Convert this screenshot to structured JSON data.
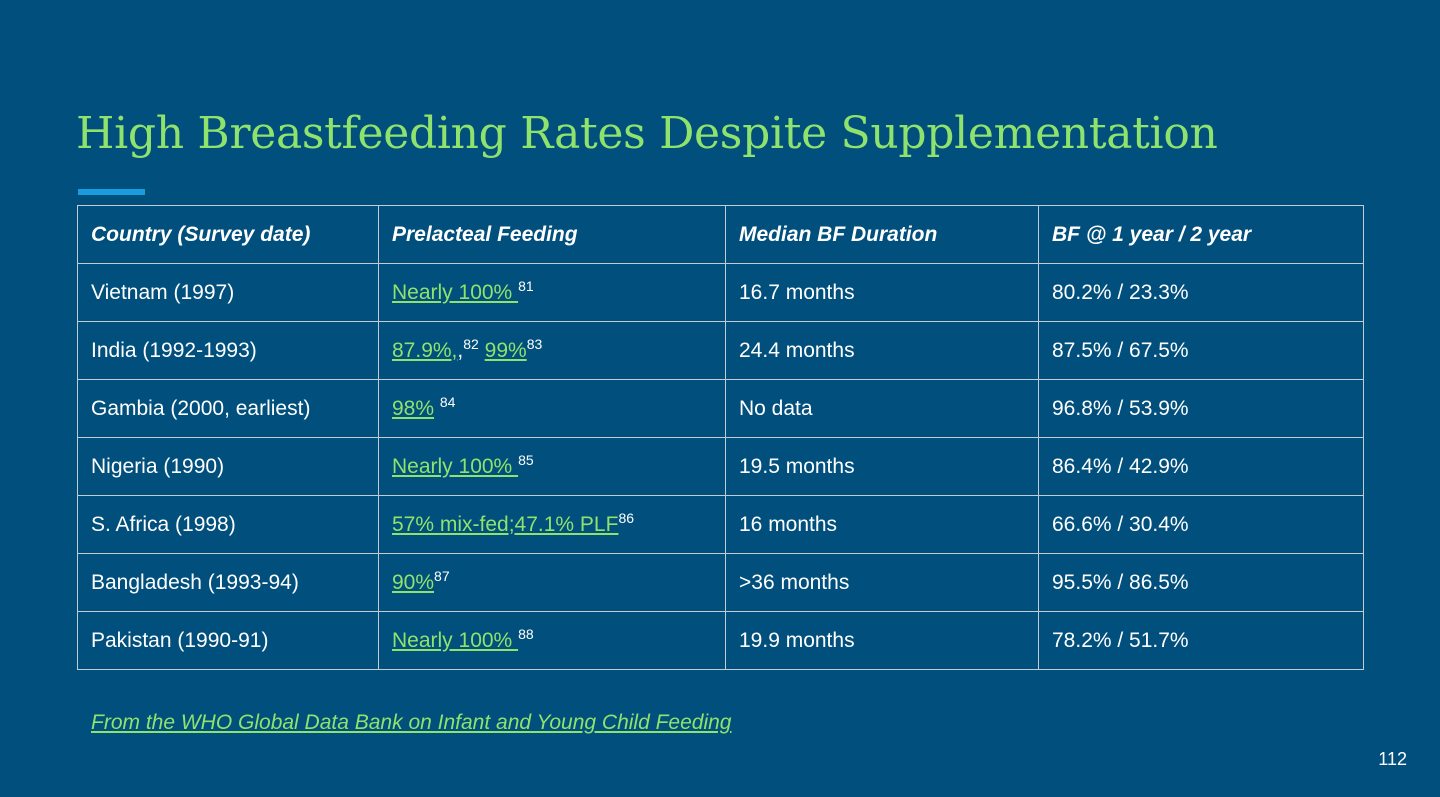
{
  "slide": {
    "title": "High Breastfeeding Rates Despite Supplementation",
    "accent_color": "#1a9bdc",
    "title_color": "#8fe36c",
    "background_color": "#004f7c"
  },
  "table": {
    "headers": [
      "Country (Survey date)",
      "Prelacteal Feeding",
      "Median BF Duration",
      "BF  @ 1 year / 2 year"
    ],
    "rows": [
      {
        "country": "Vietnam (1997)",
        "plf": {
          "link": "Nearly 100% ",
          "sup": "81"
        },
        "duration": "16.7 months",
        "bf": "80.2% / 23.3%"
      },
      {
        "country": "India (1992-1993)",
        "plf": {
          "link": "87.9%,",
          "sep": ",",
          "sup": "82",
          "link2": "99%",
          "sup2": "83"
        },
        "duration": "24.4 months",
        "bf": "87.5% / 67.5%"
      },
      {
        "country": "Gambia (2000, earliest)",
        "plf": {
          "link": "98%",
          "sup": "84"
        },
        "duration": "No data",
        "bf": "96.8% / 53.9%"
      },
      {
        "country": "Nigeria (1990)",
        "plf": {
          "link": "Nearly 100% ",
          "sup": "85"
        },
        "duration": "19.5 months",
        "bf": "86.4% / 42.9%"
      },
      {
        "country": "S. Africa (1998)",
        "plf": {
          "link": "57% mix-fed;47.1% PLF",
          "sup": "86"
        },
        "duration": "16 months",
        "bf": "66.6% / 30.4%"
      },
      {
        "country": "Bangladesh (1993-94)",
        "plf": {
          "link": "90%",
          "sup": "87"
        },
        "duration": ">36 months",
        "bf": "95.5% / 86.5%"
      },
      {
        "country": "Pakistan (1990-91)",
        "plf": {
          "link": "Nearly 100% ",
          "sup": "88"
        },
        "duration": "19.9 months",
        "bf": "78.2% / 51.7%"
      }
    ]
  },
  "source": "From the WHO Global Data Bank on Infant and Young Child Feeding",
  "page_number": "112"
}
